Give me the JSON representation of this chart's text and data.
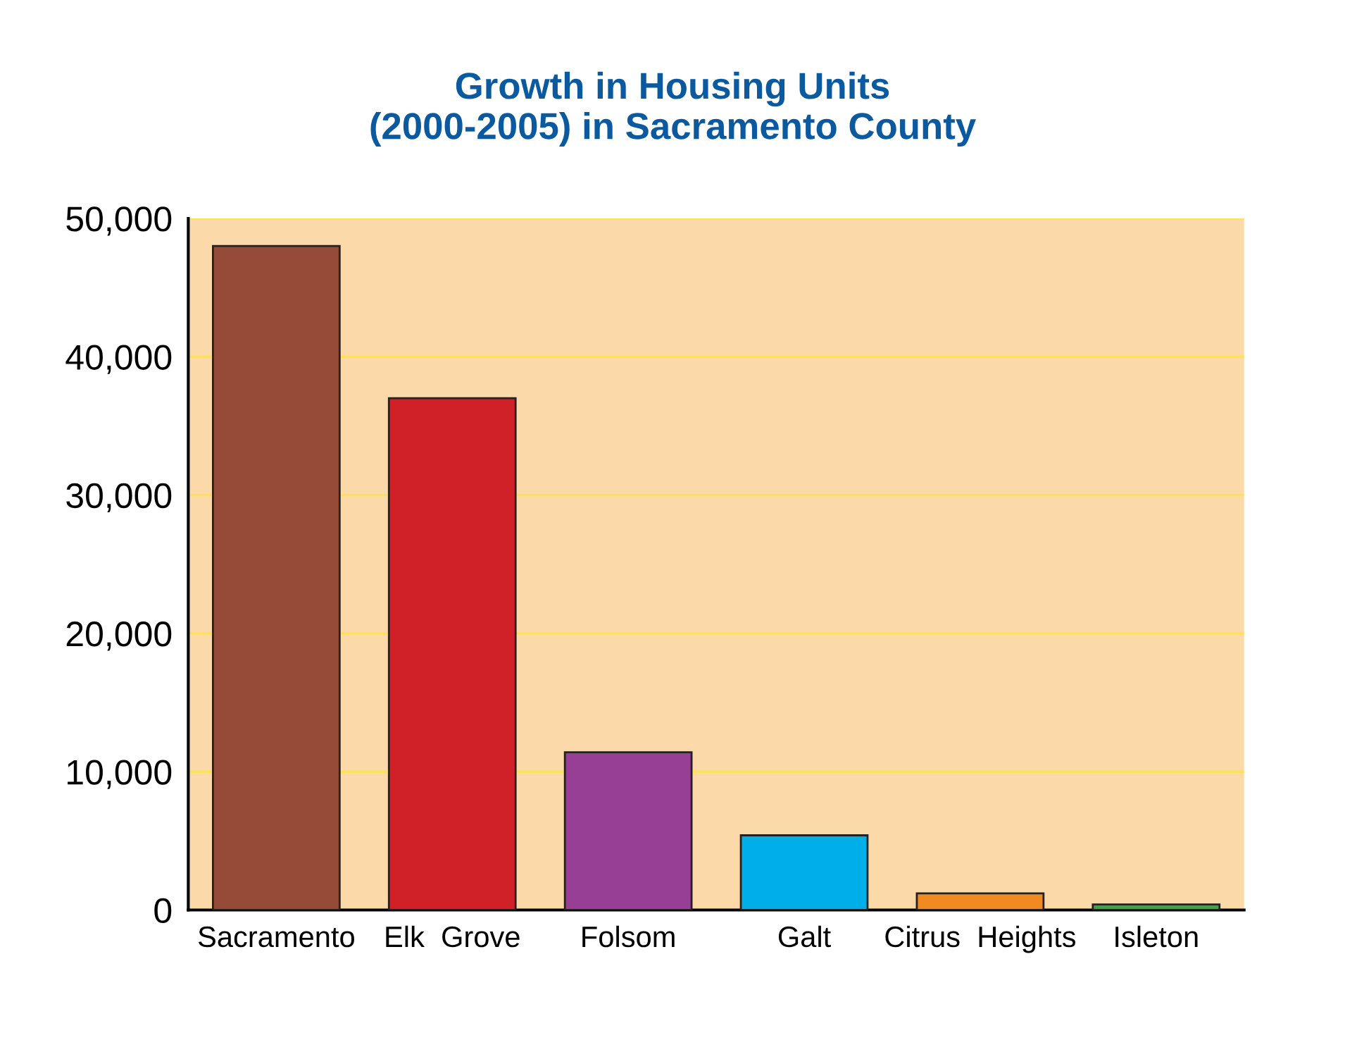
{
  "chart_data": {
    "type": "bar",
    "title": "Growth in Housing Units\n(2000-2005) in Sacramento County",
    "categories": [
      "Sacramento",
      "Elk  Grove",
      "Folsom",
      "Galt",
      "Citrus  Heights",
      "Isleton"
    ],
    "values": [
      48000,
      37000,
      11400,
      5400,
      1200,
      400
    ],
    "colors": [
      "#964b38",
      "#d02128",
      "#973f94",
      "#00aee8",
      "#f18a21",
      "#3aa844"
    ],
    "ylim": [
      0,
      50000
    ],
    "yticks": [
      {
        "value": 0,
        "label": "0"
      },
      {
        "value": 10000,
        "label": "10,000"
      },
      {
        "value": 20000,
        "label": "20,000"
      },
      {
        "value": 30000,
        "label": "30,000"
      },
      {
        "value": 40000,
        "label": "40,000"
      },
      {
        "value": 50000,
        "label": "50,000"
      }
    ],
    "grid": "y"
  }
}
